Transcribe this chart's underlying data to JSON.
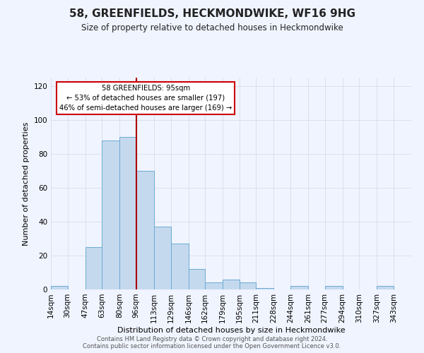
{
  "title": "58, GREENFIELDS, HECKMONDWIKE, WF16 9HG",
  "subtitle": "Size of property relative to detached houses in Heckmondwike",
  "xlabel": "Distribution of detached houses by size in Heckmondwike",
  "ylabel": "Number of detached properties",
  "footer_line1": "Contains HM Land Registry data © Crown copyright and database right 2024.",
  "footer_line2": "Contains public sector information licensed under the Open Government Licence v3.0.",
  "annotation_title": "58 GREENFIELDS: 95sqm",
  "annotation_line2": "← 53% of detached houses are smaller (197)",
  "annotation_line3": "46% of semi-detached houses are larger (169) →",
  "bar_color": "#c5d9ee",
  "bar_edge_color": "#6aaad4",
  "redline_color": "#aa0000",
  "annotation_box_color": "#ffffff",
  "annotation_box_edge_color": "#cc0000",
  "categories": [
    "14sqm",
    "30sqm",
    "47sqm",
    "63sqm",
    "80sqm",
    "96sqm",
    "113sqm",
    "129sqm",
    "146sqm",
    "162sqm",
    "179sqm",
    "195sqm",
    "211sqm",
    "228sqm",
    "244sqm",
    "261sqm",
    "277sqm",
    "294sqm",
    "310sqm",
    "327sqm",
    "343sqm"
  ],
  "bin_edges": [
    14,
    30,
    47,
    63,
    80,
    96,
    113,
    129,
    146,
    162,
    179,
    195,
    211,
    228,
    244,
    261,
    277,
    294,
    310,
    327,
    343,
    360
  ],
  "values": [
    2,
    0,
    25,
    88,
    90,
    70,
    37,
    27,
    12,
    4,
    6,
    4,
    1,
    0,
    2,
    0,
    2,
    0,
    0,
    2,
    0
  ],
  "redline_x": 96,
  "ylim": [
    0,
    125
  ],
  "yticks": [
    0,
    20,
    40,
    60,
    80,
    100,
    120
  ],
  "background_color": "#f0f4ff",
  "grid_color": "#d0d8e8",
  "title_fontsize": 11,
  "subtitle_fontsize": 8.5,
  "axis_label_fontsize": 8,
  "tick_fontsize": 7.5,
  "footer_fontsize": 6
}
